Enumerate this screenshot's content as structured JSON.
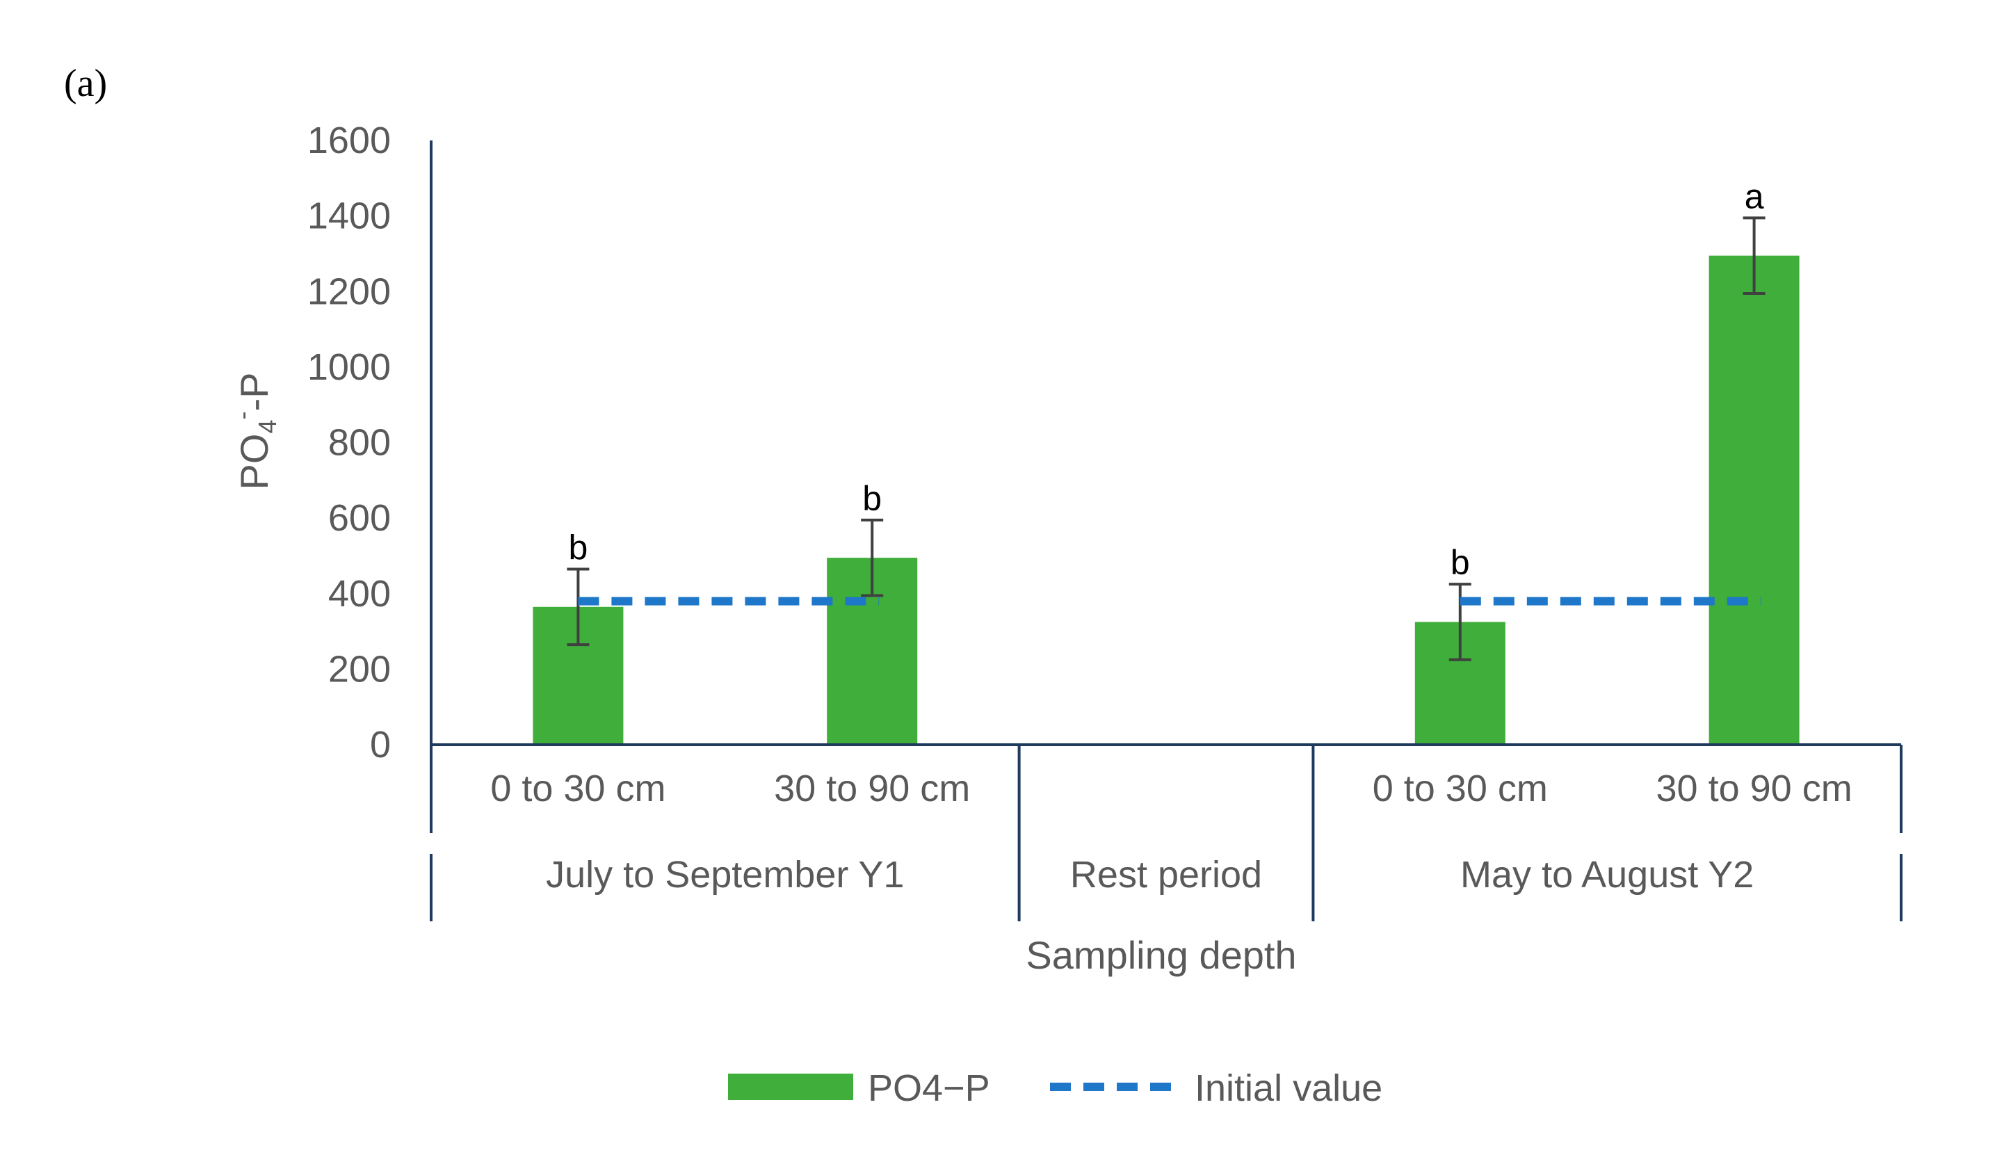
{
  "panel_label": "(a)",
  "chart_data": {
    "type": "bar",
    "xlabel": "Sampling depth",
    "ylabel_parts": {
      "pre": "PO",
      "sub": "4",
      "sup": "-",
      "post": "-P"
    },
    "ylim": [
      0,
      1600
    ],
    "yticks": [
      0,
      200,
      400,
      600,
      800,
      1000,
      1200,
      1400,
      1600
    ],
    "groups": [
      {
        "label": "July to September Y1",
        "categories": [
          "0 to 30 cm",
          "30 to 90 cm"
        ]
      },
      {
        "label": "Rest period",
        "categories": []
      },
      {
        "label": "May to August Y2",
        "categories": [
          "0 to 30 cm",
          "30 to 90 cm"
        ]
      }
    ],
    "series": [
      {
        "name": "PO4−P",
        "type": "bar",
        "color": "#3fae3a",
        "values": [
          365,
          495,
          null,
          325,
          1295
        ],
        "error": [
          100,
          100,
          null,
          100,
          100
        ],
        "labels": [
          "b",
          "b",
          "",
          "b",
          "a"
        ]
      },
      {
        "name": "Initial value",
        "type": "dashed-line",
        "color": "#1f77c9",
        "segments": [
          {
            "from_bar": 0,
            "to_bar": 1,
            "value": 380
          },
          {
            "from_bar": 3,
            "to_bar": 4,
            "value": 380
          }
        ]
      }
    ],
    "grid": false,
    "legend": "bottom"
  }
}
